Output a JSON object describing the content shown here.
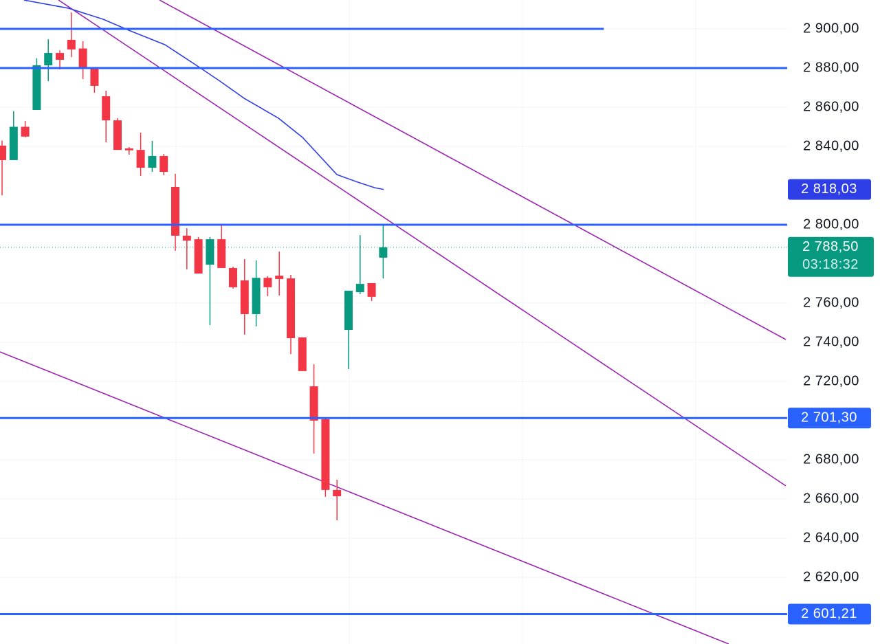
{
  "chart_data": {
    "type": "candlestick",
    "up_color": "#089981",
    "down_color": "#f23645",
    "xlim": [
      -0.18,
      67.98
    ],
    "ylim": [
      2585.96,
      2914.74
    ],
    "xgrid": [
      15.06,
      30.06,
      45.06,
      60.06
    ],
    "yticks": [
      {
        "value": 2900,
        "label": "2 900,00"
      },
      {
        "value": 2880,
        "label": "2 880,00"
      },
      {
        "value": 2860,
        "label": "2 860,00"
      },
      {
        "value": 2840,
        "label": "2 840,00"
      },
      {
        "value": 2800,
        "label": "2 800,00"
      },
      {
        "value": 2760,
        "label": "2 760,00"
      },
      {
        "value": 2740,
        "label": "2 740,00"
      },
      {
        "value": 2720,
        "label": "2 720,00"
      },
      {
        "value": 2680,
        "label": "2 680,00"
      },
      {
        "value": 2660,
        "label": "2 660,00"
      },
      {
        "value": 2640,
        "label": "2 640,00"
      },
      {
        "value": 2620,
        "label": "2 620,00"
      }
    ],
    "grid": true,
    "x": [
      0,
      1,
      2,
      3,
      4,
      5,
      6,
      7,
      8,
      9,
      10,
      11,
      12,
      13,
      14,
      15,
      16,
      17,
      18,
      19,
      20,
      21,
      22,
      23,
      24,
      25,
      26,
      27,
      28,
      29,
      30,
      31,
      32,
      33
    ],
    "candles": [
      {
        "open": 2840.4,
        "high": 2843,
        "low": 2815,
        "close": 2833
      },
      {
        "open": 2833,
        "high": 2858,
        "low": 2833,
        "close": 2850
      },
      {
        "open": 2850,
        "high": 2853,
        "low": 2844.6,
        "close": 2845
      },
      {
        "open": 2858.6,
        "high": 2885,
        "low": 2858.6,
        "close": 2881.4
      },
      {
        "open": 2881.4,
        "high": 2894.7,
        "low": 2873.3,
        "close": 2887.7
      },
      {
        "open": 2887.7,
        "high": 2889,
        "low": 2879.3,
        "close": 2884.2
      },
      {
        "open": 2894.4,
        "high": 2908.4,
        "low": 2885.6,
        "close": 2889.5
      },
      {
        "open": 2890,
        "high": 2893.7,
        "low": 2874.4,
        "close": 2879.6
      },
      {
        "open": 2879.6,
        "high": 2880.4,
        "low": 2867.4,
        "close": 2870.9
      },
      {
        "open": 2865.6,
        "high": 2868.4,
        "low": 2842.1,
        "close": 2853.3
      },
      {
        "open": 2853.3,
        "high": 2854.4,
        "low": 2838.2,
        "close": 2838.2
      },
      {
        "open": 2839,
        "high": 2839.6,
        "low": 2835.8,
        "close": 2838
      },
      {
        "open": 2838.2,
        "high": 2847,
        "low": 2824.9,
        "close": 2829.1
      },
      {
        "open": 2829.1,
        "high": 2842.8,
        "low": 2827,
        "close": 2835.1
      },
      {
        "open": 2835.1,
        "high": 2836.1,
        "low": 2825.3,
        "close": 2827
      },
      {
        "open": 2819.3,
        "high": 2826,
        "low": 2786.7,
        "close": 2794.4
      },
      {
        "open": 2794.4,
        "high": 2798.2,
        "low": 2777.2,
        "close": 2791.9
      },
      {
        "open": 2792.6,
        "high": 2793.7,
        "low": 2775.1,
        "close": 2775.1
      },
      {
        "open": 2779.6,
        "high": 2793.7,
        "low": 2748.8,
        "close": 2792.6
      },
      {
        "open": 2792.6,
        "high": 2799.6,
        "low": 2777.9,
        "close": 2777.9
      },
      {
        "open": 2777.9,
        "high": 2778.6,
        "low": 2767.4,
        "close": 2768.1
      },
      {
        "open": 2771.6,
        "high": 2782.5,
        "low": 2743.9,
        "close": 2754.4
      },
      {
        "open": 2754.4,
        "high": 2781.8,
        "low": 2748.1,
        "close": 2772.9
      },
      {
        "open": 2772.9,
        "high": 2773.7,
        "low": 2763.5,
        "close": 2768.1
      },
      {
        "open": 2774,
        "high": 2786.3,
        "low": 2763.9,
        "close": 2772.3
      },
      {
        "open": 2772.6,
        "high": 2774.4,
        "low": 2734,
        "close": 2742.1
      },
      {
        "open": 2742.5,
        "high": 2742.5,
        "low": 2725.3,
        "close": 2725.3
      },
      {
        "open": 2717.5,
        "high": 2728.8,
        "low": 2683.2,
        "close": 2700
      },
      {
        "open": 2700.7,
        "high": 2701.8,
        "low": 2661.1,
        "close": 2664.6
      },
      {
        "open": 2664.6,
        "high": 2669.8,
        "low": 2649.1,
        "close": 2661.4
      },
      {
        "open": 2746.3,
        "high": 2766.3,
        "low": 2726.3,
        "close": 2766.3
      },
      {
        "open": 2765.6,
        "high": 2794.7,
        "low": 2764.6,
        "close": 2769.8
      },
      {
        "open": 2770.2,
        "high": 2770.2,
        "low": 2761.1,
        "close": 2763.2
      },
      {
        "open": 2783.2,
        "high": 2800.4,
        "low": 2772.6,
        "close": 2788.5
      }
    ],
    "levels": {
      "color": "#2962ff",
      "items": [
        {
          "value": 2900,
          "end_x": 52.1
        },
        {
          "value": 2880
        },
        {
          "value": 2800
        },
        {
          "value": 2701.3,
          "label": "2 701,30"
        },
        {
          "value": 2601.21,
          "label": "2 601,21"
        }
      ]
    },
    "trendlines": {
      "color": "#9c27b0",
      "items": [
        {
          "x": [
            13.63,
            67.86
          ],
          "values": [
            2914.74,
            2741.4
          ]
        },
        {
          "x": [
            4.88,
            67.86
          ],
          "values": [
            2914.74,
            2666.7
          ]
        },
        {
          "x": [
            -0.18,
            62.92
          ],
          "values": [
            2735.1,
            2585.96
          ]
        }
      ]
    },
    "moving_average": {
      "color": "#2f3fe8",
      "x": [
        1.9,
        5.77,
        8.75,
        11.13,
        14.11,
        17.08,
        18.87,
        20.95,
        23.93,
        26.01,
        28.99,
        30.77,
        32.26,
        33.04
      ],
      "values": [
        2914.7,
        2910.5,
        2904.9,
        2898.9,
        2891.9,
        2880.4,
        2873.3,
        2864.6,
        2854.4,
        2844.6,
        2825.6,
        2821.8,
        2818.9,
        2818.03
      ],
      "label": {
        "value": 2818.03,
        "label": "2 818,03"
      }
    },
    "last_price": {
      "value": 2788.5,
      "label": "2 788,50",
      "countdown": "03:18:32",
      "color": "#089981"
    }
  }
}
